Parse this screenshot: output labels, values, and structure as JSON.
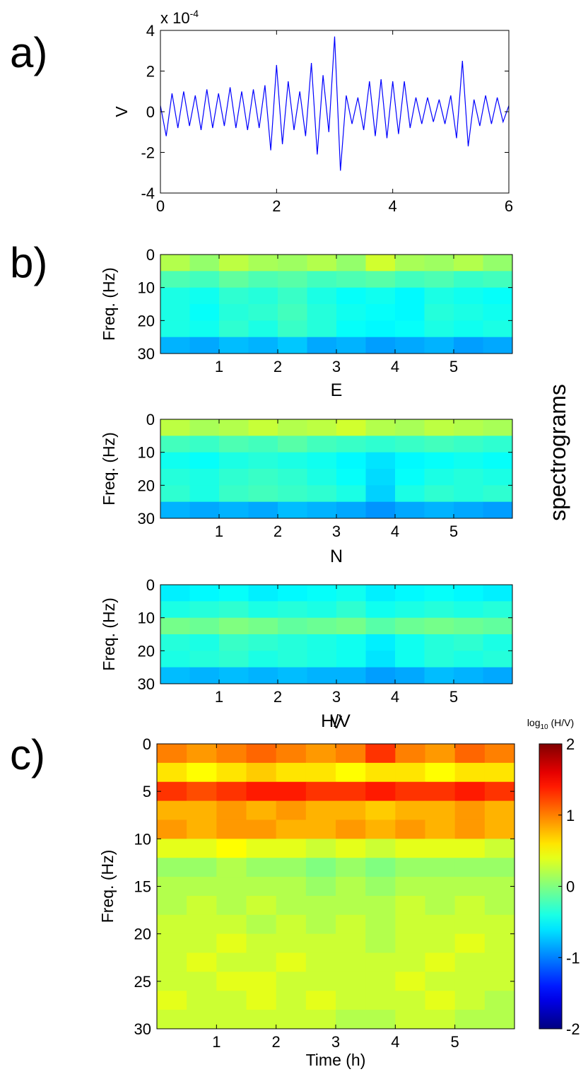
{
  "chart_data": [
    {
      "type": "line",
      "panel": "a)",
      "ylabel": "V",
      "multiplier": [
        "x 10",
        "-4"
      ],
      "color": "#0000ff",
      "xlim": [
        0,
        6
      ],
      "ylim": [
        -4,
        4
      ],
      "xticks": [
        0,
        2,
        4,
        6
      ],
      "yticks": [
        -4,
        -2,
        0,
        2,
        4
      ],
      "x": [
        0,
        0.1,
        0.2,
        0.3,
        0.4,
        0.5,
        0.6,
        0.7,
        0.8,
        0.9,
        1,
        1.1,
        1.2,
        1.3,
        1.4,
        1.5,
        1.6,
        1.7,
        1.8,
        1.9,
        2,
        2.1,
        2.2,
        2.3,
        2.4,
        2.5,
        2.6,
        2.7,
        2.8,
        2.9,
        3,
        3.1,
        3.2,
        3.3,
        3.4,
        3.5,
        3.6,
        3.7,
        3.8,
        3.9,
        4,
        4.1,
        4.2,
        4.3,
        4.4,
        4.5,
        4.6,
        4.7,
        4.8,
        4.9,
        5,
        5.1,
        5.2,
        5.3,
        5.4,
        5.5,
        5.6,
        5.7,
        5.8,
        5.9,
        6
      ],
      "values": [
        0.3,
        -1.2,
        0.9,
        -0.8,
        1.0,
        -0.7,
        0.8,
        -0.9,
        1.1,
        -0.8,
        0.9,
        -0.7,
        1.2,
        -0.8,
        1.0,
        -0.9,
        1.1,
        -0.8,
        1.3,
        -1.9,
        2.3,
        -1.6,
        1.5,
        -0.9,
        1.0,
        -1.2,
        2.4,
        -2.1,
        1.8,
        -1.0,
        3.7,
        -2.9,
        0.8,
        -0.6,
        0.7,
        -0.9,
        1.5,
        -1.2,
        1.6,
        -1.3,
        1.5,
        -1.1,
        1.5,
        -0.8,
        0.7,
        -0.6,
        0.7,
        -0.5,
        0.6,
        -0.6,
        0.8,
        -1.3,
        2.5,
        -1.7,
        0.6,
        -0.7,
        0.8,
        -0.6,
        0.7,
        -0.5,
        0.3
      ]
    },
    {
      "type": "heatmap",
      "panel": "b)",
      "title": "E",
      "ylabel": "Freq. (Hz)",
      "annotation": "spectrograms",
      "xlim": [
        0,
        6
      ],
      "ylim": [
        0,
        30
      ],
      "y_reversed": true,
      "xticks": [
        1,
        2,
        3,
        4,
        5
      ],
      "yticks": [
        0,
        10,
        20,
        30
      ],
      "clim": [
        0,
        1
      ],
      "x_bins": [
        0,
        0.5,
        1,
        1.5,
        2,
        2.5,
        3,
        3.5,
        4,
        4.5,
        5,
        5.5,
        6
      ],
      "y_bins": [
        0,
        5,
        10,
        15,
        20,
        25,
        30
      ],
      "z": [
        [
          0.55,
          0.52,
          0.56,
          0.54,
          0.53,
          0.55,
          0.52,
          0.58,
          0.54,
          0.53,
          0.55,
          0.52
        ],
        [
          0.45,
          0.44,
          0.47,
          0.45,
          0.46,
          0.44,
          0.45,
          0.46,
          0.44,
          0.45,
          0.43,
          0.44
        ],
        [
          0.4,
          0.39,
          0.42,
          0.41,
          0.43,
          0.4,
          0.38,
          0.39,
          0.37,
          0.4,
          0.39,
          0.38
        ],
        [
          0.4,
          0.38,
          0.41,
          0.42,
          0.44,
          0.41,
          0.39,
          0.38,
          0.37,
          0.41,
          0.4,
          0.39
        ],
        [
          0.4,
          0.39,
          0.42,
          0.4,
          0.43,
          0.41,
          0.38,
          0.37,
          0.38,
          0.4,
          0.39,
          0.4
        ],
        [
          0.3,
          0.29,
          0.31,
          0.3,
          0.32,
          0.29,
          0.3,
          0.28,
          0.29,
          0.3,
          0.28,
          0.29
        ]
      ]
    },
    {
      "type": "heatmap",
      "title": "N",
      "ylabel": "Freq. (Hz)",
      "xlim": [
        0,
        6
      ],
      "ylim": [
        0,
        30
      ],
      "y_reversed": true,
      "xticks": [
        1,
        2,
        3,
        4,
        5
      ],
      "yticks": [
        0,
        10,
        20,
        30
      ],
      "clim": [
        0,
        1
      ],
      "x_bins": [
        0,
        0.5,
        1,
        1.5,
        2,
        2.5,
        3,
        3.5,
        4,
        4.5,
        5,
        5.5,
        6
      ],
      "y_bins": [
        0,
        5,
        10,
        15,
        20,
        25,
        30
      ],
      "z": [
        [
          0.56,
          0.54,
          0.55,
          0.57,
          0.55,
          0.56,
          0.58,
          0.55,
          0.54,
          0.56,
          0.55,
          0.54
        ],
        [
          0.44,
          0.43,
          0.45,
          0.44,
          0.46,
          0.44,
          0.43,
          0.42,
          0.43,
          0.44,
          0.43,
          0.42
        ],
        [
          0.39,
          0.38,
          0.4,
          0.41,
          0.4,
          0.39,
          0.37,
          0.35,
          0.37,
          0.38,
          0.39,
          0.38
        ],
        [
          0.41,
          0.4,
          0.42,
          0.43,
          0.42,
          0.4,
          0.38,
          0.34,
          0.38,
          0.4,
          0.41,
          0.4
        ],
        [
          0.42,
          0.4,
          0.43,
          0.44,
          0.43,
          0.42,
          0.4,
          0.33,
          0.4,
          0.42,
          0.41,
          0.42
        ],
        [
          0.3,
          0.29,
          0.3,
          0.29,
          0.31,
          0.3,
          0.29,
          0.27,
          0.29,
          0.3,
          0.29,
          0.28
        ]
      ]
    },
    {
      "type": "heatmap",
      "title": "V",
      "ylabel": "Freq. (Hz)",
      "xlim": [
        0,
        6
      ],
      "ylim": [
        0,
        30
      ],
      "y_reversed": true,
      "xticks": [
        1,
        2,
        3,
        4,
        5
      ],
      "yticks": [
        0,
        10,
        20,
        30
      ],
      "clim": [
        0,
        1
      ],
      "x_bins": [
        0,
        0.5,
        1,
        1.5,
        2,
        2.5,
        3,
        3.5,
        4,
        4.5,
        5,
        5.5,
        6
      ],
      "y_bins": [
        0,
        5,
        10,
        15,
        20,
        25,
        30
      ],
      "z": [
        [
          0.36,
          0.37,
          0.38,
          0.36,
          0.37,
          0.38,
          0.39,
          0.36,
          0.37,
          0.38,
          0.37,
          0.36
        ],
        [
          0.4,
          0.41,
          0.42,
          0.4,
          0.41,
          0.4,
          0.42,
          0.39,
          0.4,
          0.41,
          0.4,
          0.41
        ],
        [
          0.49,
          0.48,
          0.5,
          0.49,
          0.47,
          0.48,
          0.49,
          0.46,
          0.48,
          0.49,
          0.48,
          0.47
        ],
        [
          0.41,
          0.4,
          0.43,
          0.42,
          0.41,
          0.4,
          0.39,
          0.36,
          0.39,
          0.41,
          0.42,
          0.4
        ],
        [
          0.4,
          0.41,
          0.42,
          0.4,
          0.41,
          0.4,
          0.39,
          0.35,
          0.39,
          0.41,
          0.4,
          0.41
        ],
        [
          0.31,
          0.3,
          0.31,
          0.3,
          0.31,
          0.3,
          0.3,
          0.28,
          0.29,
          0.31,
          0.3,
          0.29
        ]
      ]
    },
    {
      "type": "heatmap",
      "panel": "c)",
      "title": "H/V",
      "ylabel": "Freq. (Hz)",
      "xlabel": "Time (h)",
      "xlim": [
        0,
        6
      ],
      "ylim": [
        0,
        30
      ],
      "y_reversed": true,
      "xticks": [
        1,
        2,
        3,
        4,
        5
      ],
      "yticks": [
        0,
        5,
        10,
        15,
        20,
        25,
        30
      ],
      "clim": [
        -2,
        2
      ],
      "colorbar": {
        "label": [
          "log",
          "10",
          " (H/V)"
        ],
        "ticks": [
          -2,
          -1,
          0,
          1,
          2
        ]
      },
      "x_bins": [
        0,
        0.5,
        1,
        1.5,
        2,
        2.5,
        3,
        3.5,
        4,
        4.5,
        5,
        5.5,
        6
      ],
      "y_bins": [
        0,
        2,
        4,
        6,
        8,
        10,
        12,
        14,
        16,
        18,
        20,
        22,
        24,
        26,
        28,
        30
      ],
      "z": [
        [
          1.0,
          0.9,
          1.0,
          1.1,
          1.0,
          0.9,
          1.0,
          1.3,
          1.0,
          0.9,
          1.1,
          1.0
        ],
        [
          0.6,
          0.5,
          0.6,
          0.7,
          0.6,
          0.6,
          0.5,
          0.6,
          0.6,
          0.5,
          0.6,
          0.6
        ],
        [
          1.3,
          1.2,
          1.3,
          1.4,
          1.4,
          1.3,
          1.3,
          1.4,
          1.3,
          1.3,
          1.4,
          1.3
        ],
        [
          0.8,
          0.8,
          0.9,
          0.8,
          0.9,
          0.8,
          0.8,
          0.7,
          0.8,
          0.8,
          0.9,
          0.8
        ],
        [
          0.9,
          0.8,
          0.9,
          0.9,
          0.8,
          0.8,
          0.9,
          0.8,
          0.9,
          0.8,
          0.9,
          0.8
        ],
        [
          0.4,
          0.4,
          0.5,
          0.4,
          0.4,
          0.3,
          0.4,
          0.3,
          0.4,
          0.4,
          0.4,
          0.3
        ],
        [
          0.1,
          0.1,
          0.2,
          0.1,
          0.1,
          0.0,
          0.1,
          0.0,
          0.1,
          0.1,
          0.1,
          0.1
        ],
        [
          0.2,
          0.2,
          0.2,
          0.2,
          0.2,
          0.1,
          0.2,
          0.1,
          0.2,
          0.2,
          0.2,
          0.2
        ],
        [
          0.2,
          0.3,
          0.2,
          0.3,
          0.2,
          0.2,
          0.2,
          0.2,
          0.3,
          0.2,
          0.3,
          0.2
        ],
        [
          0.3,
          0.3,
          0.3,
          0.2,
          0.3,
          0.2,
          0.3,
          0.2,
          0.3,
          0.3,
          0.3,
          0.3
        ],
        [
          0.3,
          0.3,
          0.4,
          0.3,
          0.3,
          0.3,
          0.3,
          0.2,
          0.3,
          0.3,
          0.4,
          0.3
        ],
        [
          0.3,
          0.4,
          0.3,
          0.3,
          0.4,
          0.3,
          0.3,
          0.3,
          0.3,
          0.4,
          0.3,
          0.3
        ],
        [
          0.3,
          0.3,
          0.4,
          0.4,
          0.3,
          0.3,
          0.3,
          0.3,
          0.4,
          0.3,
          0.3,
          0.3
        ],
        [
          0.4,
          0.3,
          0.3,
          0.4,
          0.3,
          0.4,
          0.3,
          0.3,
          0.3,
          0.4,
          0.3,
          0.2
        ],
        [
          0.3,
          0.3,
          0.3,
          0.3,
          0.3,
          0.3,
          0.2,
          0.2,
          0.3,
          0.3,
          0.2,
          0.2
        ]
      ]
    }
  ]
}
